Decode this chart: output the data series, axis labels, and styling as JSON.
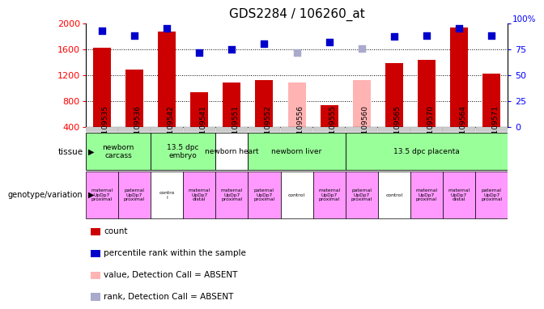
{
  "title": "GDS2284 / 106260_at",
  "samples": [
    "GSM109535",
    "GSM109536",
    "GSM109542",
    "GSM109541",
    "GSM109551",
    "GSM109552",
    "GSM109556",
    "GSM109555",
    "GSM109560",
    "GSM109565",
    "GSM109570",
    "GSM109564",
    "GSM109571"
  ],
  "count_values": [
    1620,
    1290,
    1870,
    940,
    1090,
    1120,
    null,
    740,
    null,
    1380,
    1440,
    1930,
    1220
  ],
  "count_absent": [
    null,
    null,
    null,
    null,
    null,
    null,
    1090,
    null,
    1120,
    null,
    null,
    null,
    null
  ],
  "percentile_values": [
    93,
    88,
    95,
    72,
    75,
    80,
    null,
    82,
    null,
    87,
    88,
    95,
    88
  ],
  "percentile_absent": [
    null,
    null,
    null,
    null,
    null,
    null,
    72,
    null,
    76,
    null,
    null,
    null,
    null
  ],
  "ylim_left": [
    400,
    2000
  ],
  "ylim_right": [
    0,
    100
  ],
  "yticks_left": [
    400,
    800,
    1200,
    1600,
    2000
  ],
  "yticks_right": [
    0,
    25,
    50,
    75,
    100
  ],
  "bar_color_present": "#cc0000",
  "bar_color_absent": "#ffb3b3",
  "dot_color_present": "#0000cc",
  "dot_color_absent": "#aaaacc",
  "tissue_groups": [
    {
      "label": "newborn\ncarcass",
      "start": 0,
      "end": 2,
      "color": "#99ff99"
    },
    {
      "label": "13.5 dpc\nembryo",
      "start": 2,
      "end": 4,
      "color": "#99ff99"
    },
    {
      "label": "newborn heart",
      "start": 4,
      "end": 5,
      "color": "#ffffff"
    },
    {
      "label": "newborn liver",
      "start": 5,
      "end": 8,
      "color": "#99ff99"
    },
    {
      "label": "13.5 dpc placenta",
      "start": 8,
      "end": 13,
      "color": "#99ff99"
    }
  ],
  "genotype_labels": [
    {
      "label": "maternal\nUpDp7\nproximal",
      "color": "#ff99ff"
    },
    {
      "label": "paternal\nUpDp7\nproximal",
      "color": "#ff99ff"
    },
    {
      "label": "contro\nl",
      "color": "#ffffff"
    },
    {
      "label": "maternal\nUpDp7\ndistal",
      "color": "#ff99ff"
    },
    {
      "label": "maternal\nUpDp7\nproximal",
      "color": "#ff99ff"
    },
    {
      "label": "paternal\nUpDp7\nproximal",
      "color": "#ff99ff"
    },
    {
      "label": "control",
      "color": "#ffffff"
    },
    {
      "label": "maternal\nUpDp7\nproximal",
      "color": "#ff99ff"
    },
    {
      "label": "paternal\nUpDp7\nproximal",
      "color": "#ff99ff"
    },
    {
      "label": "control",
      "color": "#ffffff"
    },
    {
      "label": "maternal\nUpDp7\nproximal",
      "color": "#ff99ff"
    },
    {
      "label": "maternal\nUpDp7\ndistal",
      "color": "#ff99ff"
    },
    {
      "label": "paternal\nUpDp7\nproximal",
      "color": "#ff99ff"
    }
  ],
  "legend_lines": [
    {
      "color": "#cc0000",
      "label": "count"
    },
    {
      "color": "#0000cc",
      "label": "percentile rank within the sample"
    },
    {
      "color": "#ffb3b3",
      "label": "value, Detection Call = ABSENT"
    },
    {
      "color": "#aaaacc",
      "label": "rank, Detection Call = ABSENT"
    }
  ],
  "bar_width": 0.55,
  "dot_size": 35,
  "bg_color": "#ffffff",
  "grid_color": "#000000",
  "tick_area_color": "#cccccc"
}
